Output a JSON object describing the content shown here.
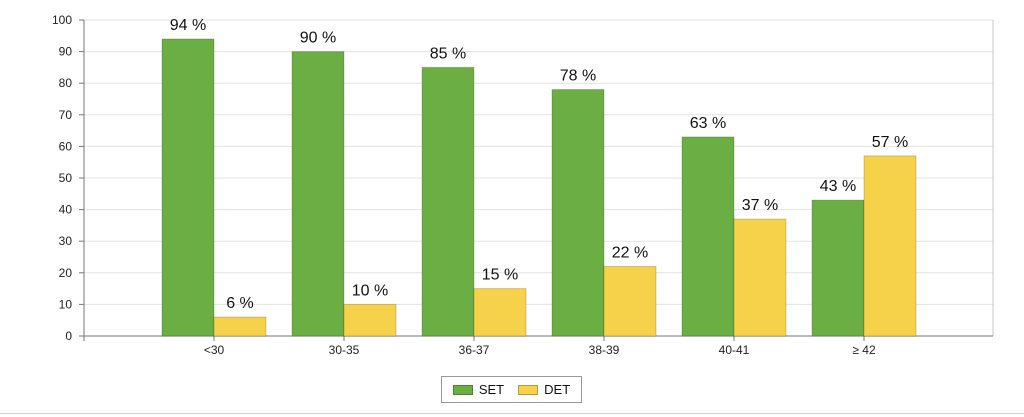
{
  "chart_data": {
    "type": "bar",
    "categories": [
      "<30",
      "30-35",
      "36-37",
      "38-39",
      "40-41",
      "≥ 42"
    ],
    "series": [
      {
        "name": "SET",
        "color": "#6aae44",
        "values": [
          94,
          90,
          85,
          78,
          63,
          43
        ],
        "labels": [
          "94 %",
          "90 %",
          "85 %",
          "78 %",
          "63 %",
          "43 %"
        ]
      },
      {
        "name": "DET",
        "color": "#f5d24a",
        "values": [
          6,
          10,
          15,
          22,
          37,
          57
        ],
        "labels": [
          "6 %",
          "10 %",
          "15 %",
          "22 %",
          "37 %",
          "57 %"
        ]
      }
    ],
    "ylim": [
      0,
      100
    ],
    "yticks": [
      0,
      10,
      20,
      30,
      40,
      50,
      60,
      70,
      80,
      90,
      100
    ],
    "grid": true,
    "legend_position": "bottom-center"
  }
}
